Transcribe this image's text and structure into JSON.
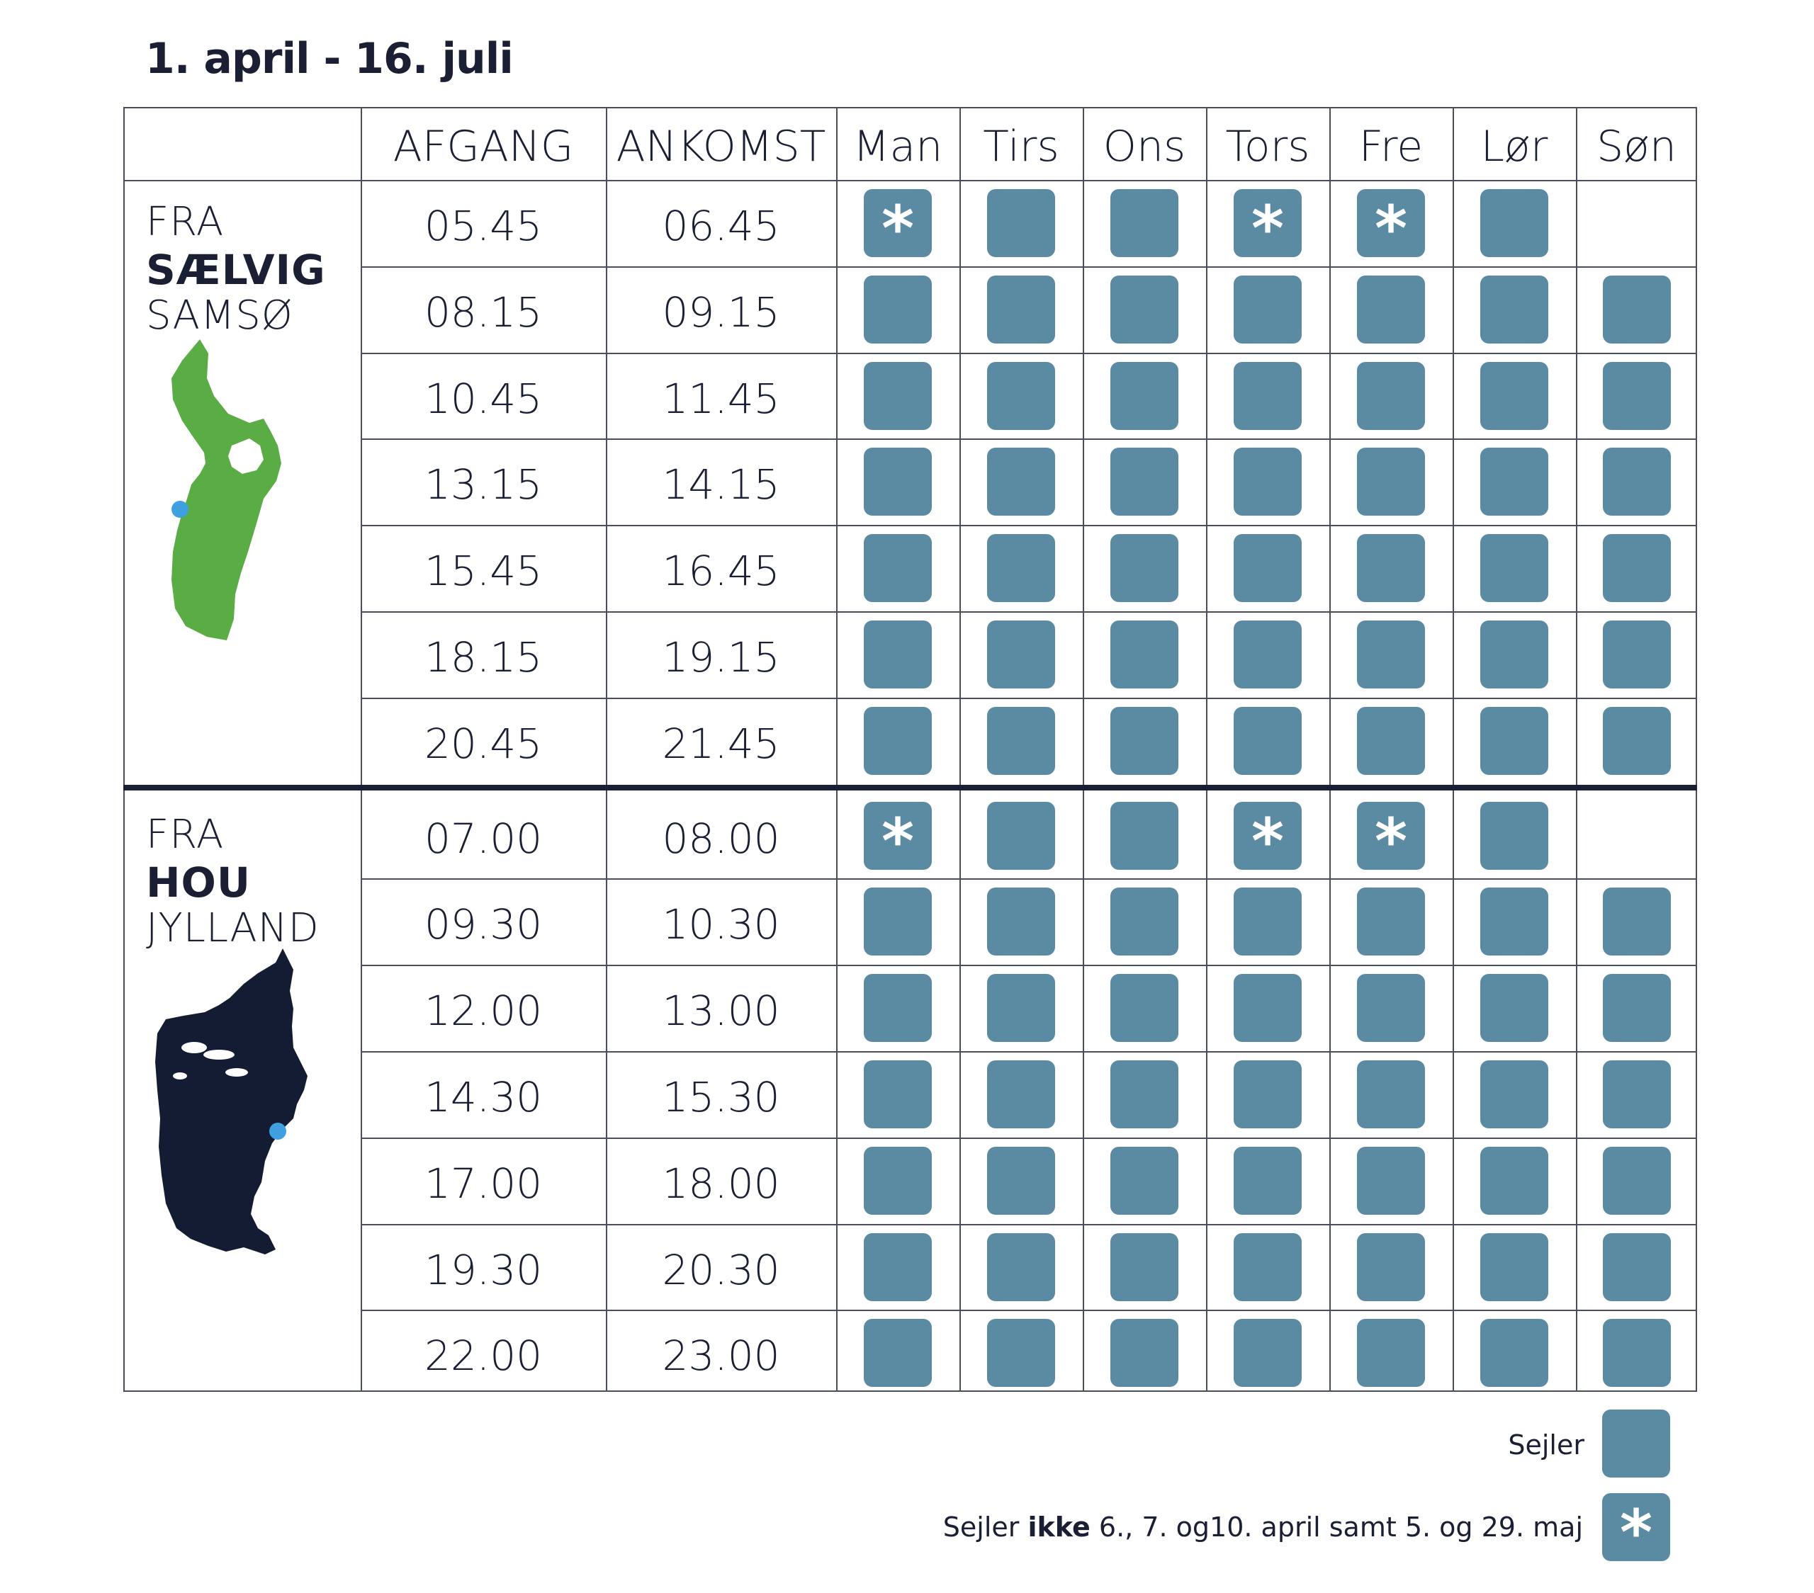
{
  "title": "1. april - 16. juli",
  "header": {
    "afgang": "AFGANG",
    "ankomst": "ANKOMST",
    "days": [
      "Man",
      "Tirs",
      "Ons",
      "Tors",
      "Fre",
      "Lør",
      "Søn"
    ]
  },
  "sections": [
    {
      "fra": "FRA",
      "port": "SÆLVIG",
      "region": "SAMSØ",
      "map_icon": "samso-island-map",
      "map_color": "#5aac44",
      "rows": [
        {
          "afgang": "05.45",
          "ankomst": "06.45",
          "days": [
            "no-sail-dates",
            "sails",
            "sails",
            "no-sail-dates",
            "no-sail-dates",
            "sails",
            "none"
          ]
        },
        {
          "afgang": "08.15",
          "ankomst": "09.15",
          "days": [
            "sails",
            "sails",
            "sails",
            "sails",
            "sails",
            "sails",
            "sails"
          ]
        },
        {
          "afgang": "10.45",
          "ankomst": "11.45",
          "days": [
            "sails",
            "sails",
            "sails",
            "sails",
            "sails",
            "sails",
            "sails"
          ]
        },
        {
          "afgang": "13.15",
          "ankomst": "14.15",
          "days": [
            "sails",
            "sails",
            "sails",
            "sails",
            "sails",
            "sails",
            "sails"
          ]
        },
        {
          "afgang": "15.45",
          "ankomst": "16.45",
          "days": [
            "sails",
            "sails",
            "sails",
            "sails",
            "sails",
            "sails",
            "sails"
          ]
        },
        {
          "afgang": "18.15",
          "ankomst": "19.15",
          "days": [
            "sails",
            "sails",
            "sails",
            "sails",
            "sails",
            "sails",
            "sails"
          ]
        },
        {
          "afgang": "20.45",
          "ankomst": "21.45",
          "days": [
            "sails",
            "sails",
            "sails",
            "sails",
            "sails",
            "sails",
            "sails"
          ]
        }
      ]
    },
    {
      "fra": "FRA",
      "port": "HOU",
      "region": "JYLLAND",
      "map_icon": "jutland-map",
      "map_color": "#141c33",
      "rows": [
        {
          "afgang": "07.00",
          "ankomst": "08.00",
          "days": [
            "no-sail-dates",
            "sails",
            "sails",
            "no-sail-dates",
            "no-sail-dates",
            "sails",
            "none"
          ]
        },
        {
          "afgang": "09.30",
          "ankomst": "10.30",
          "days": [
            "sails",
            "sails",
            "sails",
            "sails",
            "sails",
            "sails",
            "sails"
          ]
        },
        {
          "afgang": "12.00",
          "ankomst": "13.00",
          "days": [
            "sails",
            "sails",
            "sails",
            "sails",
            "sails",
            "sails",
            "sails"
          ]
        },
        {
          "afgang": "14.30",
          "ankomst": "15.30",
          "days": [
            "sails",
            "sails",
            "sails",
            "sails",
            "sails",
            "sails",
            "sails"
          ]
        },
        {
          "afgang": "17.00",
          "ankomst": "18.00",
          "days": [
            "sails",
            "sails",
            "sails",
            "sails",
            "sails",
            "sails",
            "sails"
          ]
        },
        {
          "afgang": "19.30",
          "ankomst": "20.30",
          "days": [
            "sails",
            "sails",
            "sails",
            "sails",
            "sails",
            "sails",
            "sails"
          ]
        },
        {
          "afgang": "22.00",
          "ankomst": "23.00",
          "days": [
            "sails",
            "sails",
            "sails",
            "sails",
            "sails",
            "sails",
            "sails"
          ]
        }
      ]
    }
  ],
  "legend": {
    "sejler": "Sejler",
    "ikke_prefix": "Sejler ",
    "ikke_bold": "ikke",
    "ikke_suffix": " 6., 7. og10. april samt 5. og 29. maj",
    "star_glyph": "*"
  },
  "colors": {
    "box": "#5b8aa3",
    "text": "#1a1f33",
    "port_marker": "#3fa0e0"
  }
}
